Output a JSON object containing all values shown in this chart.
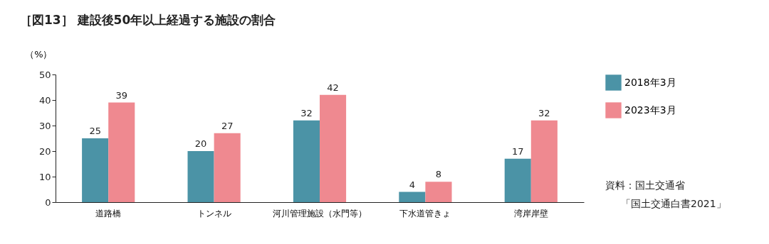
{
  "chart_data": {
    "type": "bar",
    "title": "［図13］ 建設後50年以上経過する施設の割合",
    "ylabel": "（%）",
    "categories": [
      "道路橋",
      "トンネル",
      "河川管理施設（水門等）",
      "下水道管きょ",
      "湾岸岸壁"
    ],
    "series": [
      {
        "name": "2018年3月",
        "color": "#4b93a6",
        "values": [
          25,
          20,
          32,
          4,
          17
        ]
      },
      {
        "name": "2023年3月",
        "color": "#ef8990",
        "values": [
          39,
          27,
          42,
          8,
          32
        ]
      }
    ],
    "ylim": [
      0,
      50
    ],
    "yticks": [
      0,
      10,
      20,
      30,
      40,
      50
    ],
    "grid": false,
    "legend": "right",
    "data_labels": true,
    "annotations": [
      "資料：国土交通省",
      "「国土交通白書2021」"
    ]
  }
}
